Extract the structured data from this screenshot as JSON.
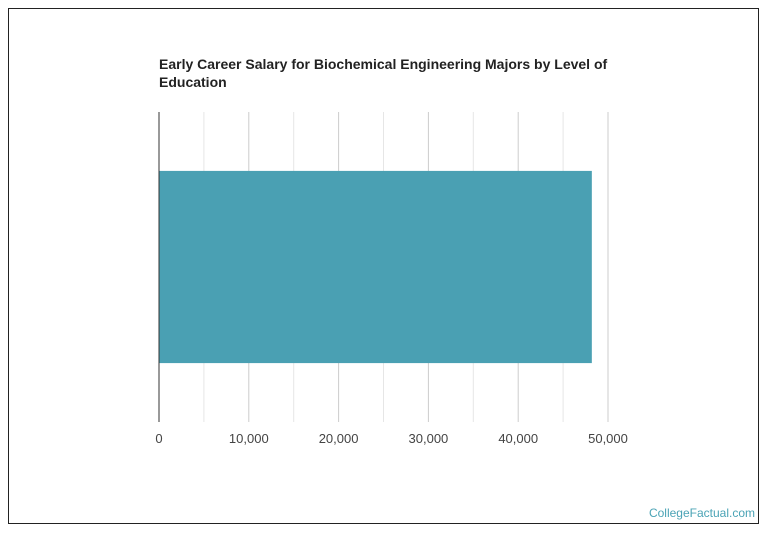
{
  "chart_data": {
    "type": "bar",
    "orientation": "horizontal",
    "title": "Early Career Salary for Biochemical Engineering Majors by Level of Education",
    "categories": [
      ""
    ],
    "values": [
      48200
    ],
    "xlim": [
      0,
      50000
    ],
    "xticks": [
      "0",
      "10,000",
      "20,000",
      "30,000",
      "40,000",
      "50,000"
    ],
    "grid": true,
    "bar_color": "#4aa0b3"
  },
  "watermark": "CollegeFactual.com"
}
